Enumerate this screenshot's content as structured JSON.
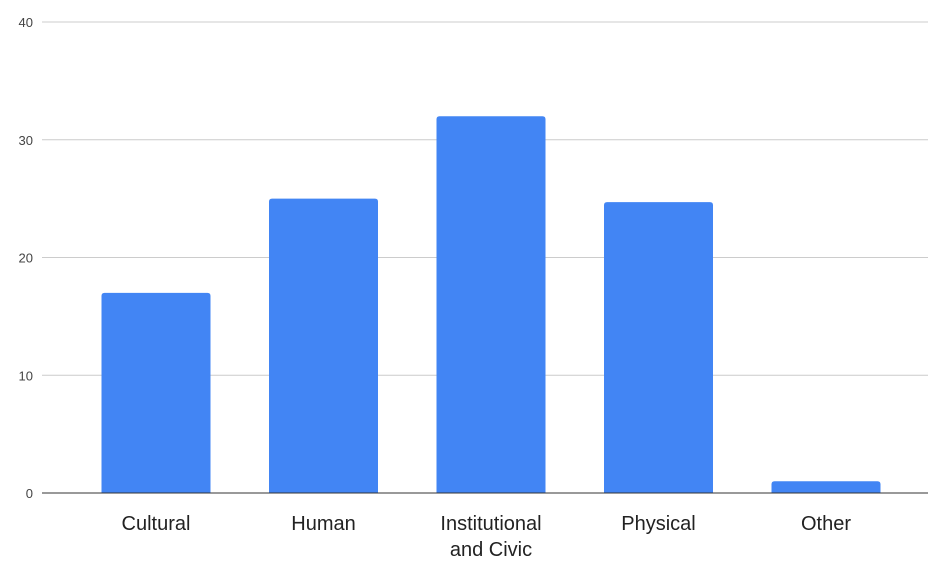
{
  "chart_data": {
    "type": "bar",
    "title": "",
    "xlabel": "",
    "ylabel": "",
    "categories": [
      "Cultural",
      "Human",
      "Institutional and Civic",
      "Physical",
      "Other"
    ],
    "category_lines": [
      [
        "Cultural"
      ],
      [
        "Human"
      ],
      [
        "Institutional",
        "and Civic"
      ],
      [
        "Physical"
      ],
      [
        "Other"
      ]
    ],
    "values": [
      17,
      25,
      32,
      24.7,
      1
    ],
    "ylim": [
      0,
      40
    ],
    "yticks": [
      0,
      10,
      20,
      30,
      40
    ],
    "ytick_labels": [
      "0",
      "10",
      "20",
      "30",
      "40"
    ],
    "grid": true,
    "legend": "none",
    "bar_color": "#4285f4",
    "grid_color": "#cccccc",
    "axis_color": "#333333"
  }
}
